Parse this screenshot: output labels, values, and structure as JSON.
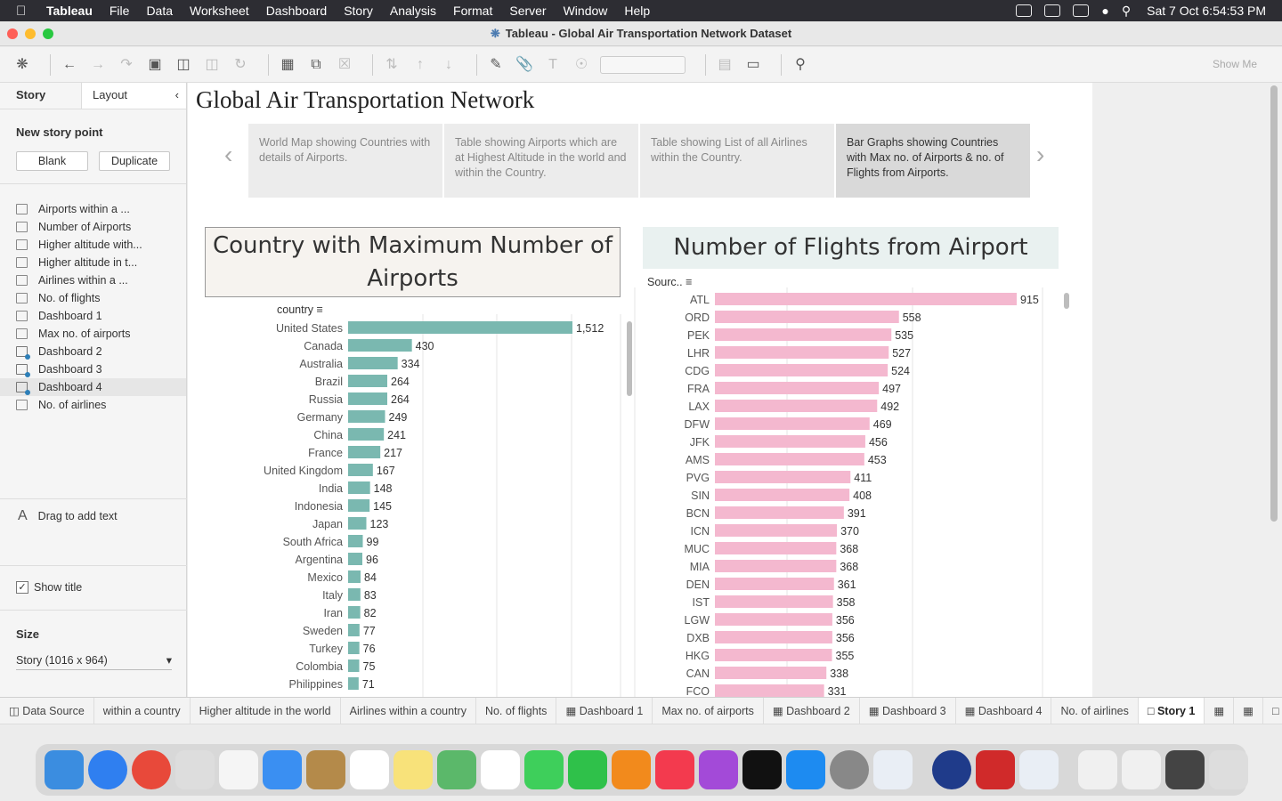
{
  "menubar": {
    "app": "Tableau",
    "items": [
      "File",
      "Data",
      "Worksheet",
      "Dashboard",
      "Story",
      "Analysis",
      "Format",
      "Server",
      "Window",
      "Help"
    ],
    "clock": "Sat 7 Oct  6:54:53 PM"
  },
  "window": {
    "title": "Tableau - Global Air Transportation Network Dataset"
  },
  "toolbar": {
    "show_me": "Show Me"
  },
  "sidebar": {
    "tab_story": "Story",
    "tab_layout": "Layout",
    "new_story_point": "New story point",
    "blank": "Blank",
    "duplicate": "Duplicate",
    "sheets": [
      {
        "label": "Airports within a ...",
        "type": "sheet"
      },
      {
        "label": "Number of Airports",
        "type": "sheet"
      },
      {
        "label": "Higher altitude with...",
        "type": "sheet"
      },
      {
        "label": "Higher altitude in t...",
        "type": "sheet"
      },
      {
        "label": "Airlines within a ...",
        "type": "sheet"
      },
      {
        "label": "No. of flights",
        "type": "sheet"
      },
      {
        "label": "Dashboard 1",
        "type": "dashboard"
      },
      {
        "label": "Max no. of airports",
        "type": "sheet"
      },
      {
        "label": "Dashboard 2",
        "type": "dashboard"
      },
      {
        "label": "Dashboard 3",
        "type": "dashboard"
      },
      {
        "label": "Dashboard 4",
        "type": "dashboard"
      },
      {
        "label": "No. of airlines",
        "type": "sheet"
      }
    ],
    "drag_text": "Drag to add text",
    "show_title": "Show title",
    "size_header": "Size",
    "size_value": "Story (1016 x 964)"
  },
  "story": {
    "title": "Global Air Transportation Network",
    "points": [
      "World Map showing Countries with details of Airports.",
      "Table showing Airports which are at Highest Altitude in the world and within the Country.",
      "Table showing List of all Airlines within the Country.",
      "Bar Graphs showing Countries with Max no. of Airports & no. of Flights from Airports."
    ]
  },
  "chart_data": [
    {
      "type": "bar",
      "title": "Country with Maximum Number of Airports",
      "orientation": "horizontal",
      "field_label": "country",
      "color": "#7ab8b0",
      "categories": [
        "United States",
        "Canada",
        "Australia",
        "Brazil",
        "Russia",
        "Germany",
        "China",
        "France",
        "United Kingdom",
        "India",
        "Indonesia",
        "Japan",
        "South Africa",
        "Argentina",
        "Mexico",
        "Italy",
        "Iran",
        "Sweden",
        "Turkey",
        "Colombia",
        "Philippines"
      ],
      "values": [
        1512,
        430,
        334,
        264,
        264,
        249,
        241,
        217,
        167,
        148,
        145,
        123,
        99,
        96,
        84,
        83,
        82,
        77,
        76,
        75,
        71
      ]
    },
    {
      "type": "bar",
      "title": "Number of Flights from Airport",
      "orientation": "horizontal",
      "field_label": "Sourc..",
      "color": "#f4b8cf",
      "categories": [
        "ATL",
        "ORD",
        "PEK",
        "LHR",
        "CDG",
        "FRA",
        "LAX",
        "DFW",
        "JFK",
        "AMS",
        "PVG",
        "SIN",
        "BCN",
        "ICN",
        "MUC",
        "MIA",
        "DEN",
        "IST",
        "LGW",
        "DXB",
        "HKG",
        "CAN",
        "FCO"
      ],
      "values": [
        915,
        558,
        535,
        527,
        524,
        497,
        492,
        469,
        456,
        453,
        411,
        408,
        391,
        370,
        368,
        368,
        361,
        358,
        356,
        356,
        355,
        338,
        331
      ]
    }
  ],
  "bottom_tabs": [
    "Data Source",
    "within a country",
    "Higher altitude in the world",
    "Airlines within a country",
    "No. of flights",
    "Dashboard 1",
    "Max no. of airports",
    "Dashboard 2",
    "Dashboard 3",
    "Dashboard 4",
    "No. of airlines",
    "Story 1"
  ]
}
